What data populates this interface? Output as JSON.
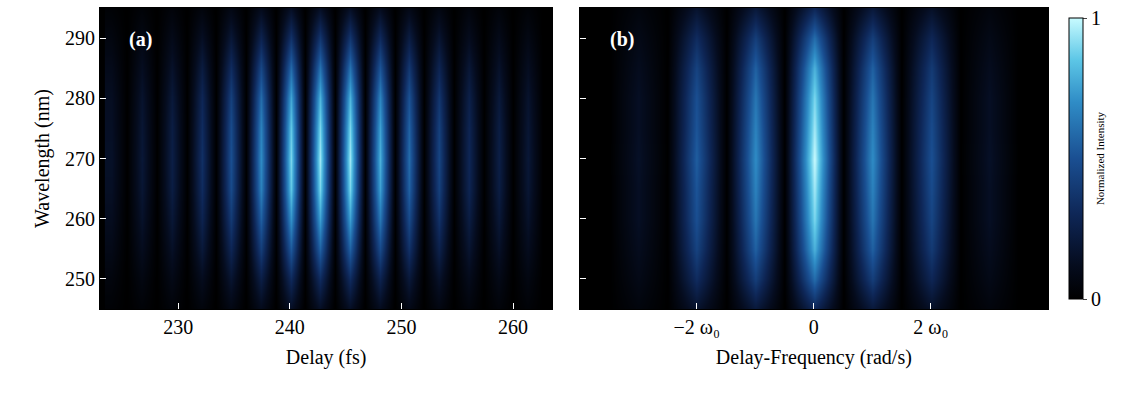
{
  "chart_data": [
    {
      "type": "heatmap",
      "panel": "(a)",
      "x_label": "Delay (fs)",
      "y_label": "Wavelength (nm)",
      "x": [
        224.1,
        225.43,
        226.76,
        228.09,
        229.42,
        230.75,
        232.08,
        233.41,
        234.74,
        236.07,
        237.4,
        238.73,
        240.06,
        241.39,
        242.72,
        244.05,
        245.38,
        246.71,
        248.04,
        249.37,
        250.7,
        252.03,
        253.36,
        254.69,
        256.02,
        257.35,
        258.68,
        260.01,
        261.34,
        262.67
      ],
      "y": [
        245,
        250,
        255,
        260,
        265,
        270,
        275,
        280,
        285,
        290,
        295
      ],
      "z": [
        [
          0.02,
          0,
          0.03,
          0,
          0.04,
          0,
          0.05,
          0,
          0.08,
          0,
          0.11,
          0,
          0.14,
          0,
          0.14,
          0,
          0.14,
          0,
          0.12,
          0,
          0.09,
          0,
          0.07,
          0,
          0.05,
          0,
          0.04,
          0,
          0.03,
          0
        ],
        [
          0.05,
          0,
          0.07,
          0,
          0.09,
          0,
          0.12,
          0,
          0.18,
          0,
          0.25,
          0,
          0.32,
          0,
          0.33,
          0,
          0.33,
          0,
          0.28,
          0,
          0.21,
          0,
          0.16,
          0,
          0.11,
          0,
          0.09,
          0,
          0.07,
          0
        ],
        [
          0.09,
          0,
          0.12,
          0,
          0.15,
          0,
          0.21,
          0,
          0.3,
          0,
          0.42,
          0,
          0.54,
          0,
          0.57,
          0,
          0.57,
          0,
          0.48,
          0,
          0.36,
          0,
          0.27,
          0,
          0.18,
          0,
          0.15,
          0,
          0.12,
          0
        ],
        [
          0.12,
          0,
          0.16,
          0,
          0.2,
          0,
          0.28,
          0,
          0.4,
          0,
          0.56,
          0,
          0.72,
          0,
          0.76,
          0,
          0.76,
          0,
          0.64,
          0,
          0.48,
          0,
          0.36,
          0,
          0.24,
          0,
          0.2,
          0,
          0.16,
          0
        ],
        [
          0.14,
          0,
          0.19,
          0,
          0.24,
          0,
          0.33,
          0,
          0.48,
          0,
          0.67,
          0,
          0.86,
          0,
          0.9,
          0,
          0.9,
          0,
          0.76,
          0,
          0.57,
          0,
          0.43,
          0,
          0.29,
          0,
          0.24,
          0,
          0.19,
          0
        ],
        [
          0.15,
          0,
          0.2,
          0,
          0.25,
          0,
          0.35,
          0,
          0.5,
          0,
          0.7,
          0,
          0.9,
          0,
          0.95,
          0,
          0.95,
          0,
          0.8,
          0,
          0.6,
          0,
          0.45,
          0,
          0.3,
          0,
          0.25,
          0,
          0.2,
          0
        ],
        [
          0.14,
          0,
          0.19,
          0,
          0.24,
          0,
          0.33,
          0,
          0.48,
          0,
          0.67,
          0,
          0.86,
          0,
          0.9,
          0,
          0.9,
          0,
          0.76,
          0,
          0.57,
          0,
          0.43,
          0,
          0.29,
          0,
          0.24,
          0,
          0.19,
          0
        ],
        [
          0.13,
          0,
          0.17,
          0,
          0.21,
          0,
          0.3,
          0,
          0.43,
          0,
          0.6,
          0,
          0.77,
          0,
          0.81,
          0,
          0.81,
          0,
          0.68,
          0,
          0.51,
          0,
          0.38,
          0,
          0.26,
          0,
          0.21,
          0,
          0.17,
          0
        ],
        [
          0.1,
          0,
          0.13,
          0,
          0.16,
          0,
          0.23,
          0,
          0.33,
          0,
          0.46,
          0,
          0.59,
          0,
          0.62,
          0,
          0.62,
          0,
          0.52,
          0,
          0.39,
          0,
          0.29,
          0,
          0.2,
          0,
          0.16,
          0,
          0.13,
          0
        ],
        [
          0.06,
          0,
          0.08,
          0,
          0.1,
          0,
          0.14,
          0,
          0.2,
          0,
          0.28,
          0,
          0.36,
          0,
          0.38,
          0,
          0.38,
          0,
          0.32,
          0,
          0.24,
          0,
          0.18,
          0,
          0.12,
          0,
          0.1,
          0,
          0.08,
          0
        ],
        [
          0.02,
          0,
          0.03,
          0,
          0.04,
          0,
          0.05,
          0,
          0.08,
          0,
          0.11,
          0,
          0.14,
          0,
          0.14,
          0,
          0.14,
          0,
          0.12,
          0,
          0.09,
          0,
          0.07,
          0,
          0.05,
          0,
          0.04,
          0,
          0.03,
          0
        ]
      ],
      "xlim": [
        223,
        263.5
      ],
      "xticks": [
        230,
        240,
        250,
        260
      ],
      "ylim": [
        245,
        295
      ],
      "yticks": [
        250,
        260,
        270,
        280,
        290
      ]
    },
    {
      "type": "heatmap",
      "panel": "(b)",
      "x_label": "Delay-Frequency (rad/s)",
      "x": [
        -3.5,
        -3,
        -2.5,
        -2,
        -1.5,
        -1,
        -0.5,
        0,
        0.5,
        1,
        1.5,
        2,
        2.5,
        3,
        3.5
      ],
      "y": [
        245,
        250,
        255,
        260,
        265,
        270,
        275,
        280,
        285,
        290,
        295
      ],
      "z": [
        [
          0,
          0.05,
          0,
          0.17,
          0,
          0.21,
          0,
          0.3,
          0,
          0.21,
          0,
          0.15,
          0,
          0.05,
          0
        ],
        [
          0,
          0.09,
          0,
          0.33,
          0,
          0.42,
          0,
          0.6,
          0,
          0.42,
          0,
          0.3,
          0,
          0.09,
          0
        ],
        [
          0,
          0.12,
          0,
          0.44,
          0,
          0.56,
          0,
          0.8,
          0,
          0.56,
          0,
          0.4,
          0,
          0.12,
          0
        ],
        [
          0,
          0.14,
          0,
          0.5,
          0,
          0.63,
          0,
          0.9,
          0,
          0.63,
          0,
          0.45,
          0,
          0.14,
          0
        ],
        [
          0,
          0.14,
          0,
          0.52,
          0,
          0.67,
          0,
          0.95,
          0,
          0.67,
          0,
          0.48,
          0,
          0.14,
          0
        ],
        [
          0,
          0.15,
          0,
          0.55,
          0,
          0.7,
          0,
          1.0,
          0,
          0.7,
          0,
          0.5,
          0,
          0.15,
          0
        ],
        [
          0,
          0.14,
          0,
          0.52,
          0,
          0.67,
          0,
          0.95,
          0,
          0.67,
          0,
          0.48,
          0,
          0.14,
          0
        ],
        [
          0,
          0.14,
          0,
          0.5,
          0,
          0.63,
          0,
          0.9,
          0,
          0.63,
          0,
          0.45,
          0,
          0.14,
          0
        ],
        [
          0,
          0.12,
          0,
          0.44,
          0,
          0.56,
          0,
          0.8,
          0,
          0.56,
          0,
          0.4,
          0,
          0.12,
          0
        ],
        [
          0,
          0.09,
          0,
          0.33,
          0,
          0.42,
          0,
          0.6,
          0,
          0.42,
          0,
          0.3,
          0,
          0.09,
          0
        ],
        [
          0,
          0.05,
          0,
          0.17,
          0,
          0.21,
          0,
          0.3,
          0,
          0.21,
          0,
          0.15,
          0,
          0.05,
          0
        ]
      ],
      "xlim": [
        -4,
        4
      ],
      "xticks": [
        {
          "value": -2,
          "label": "−2 ω₀"
        },
        0,
        {
          "value": 2,
          "label": "2 ω₀"
        }
      ],
      "ylim": [
        245,
        295
      ],
      "yticks": [
        250,
        260,
        270,
        280,
        290
      ],
      "tick_labels": "x",
      "colorbar": {
        "title": "Normalized Intensity",
        "range": [
          0,
          1
        ],
        "ticks": [
          0,
          1
        ]
      }
    }
  ]
}
